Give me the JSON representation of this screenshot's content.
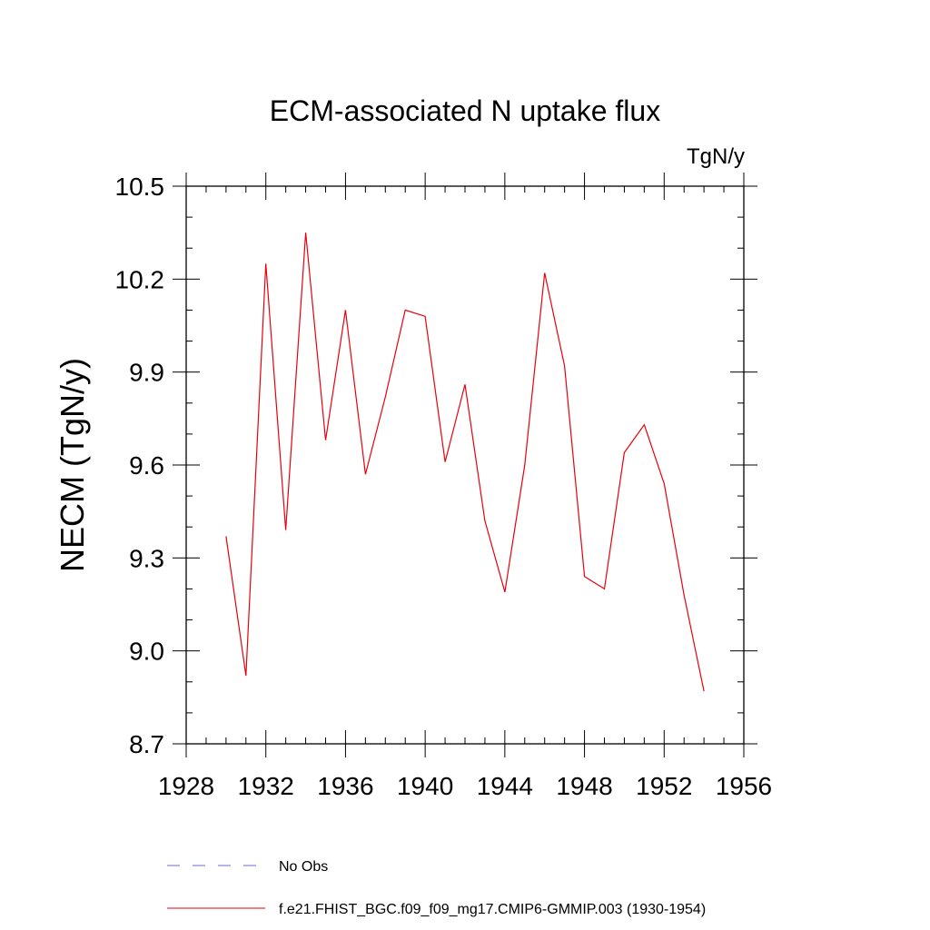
{
  "chart_data": {
    "type": "line",
    "title": "ECM-associated N uptake flux",
    "units": "TgN/y",
    "xlabel": "",
    "ylabel": "NECM  (TgN/y)",
    "xlim": [
      1928,
      1956
    ],
    "ylim": [
      8.7,
      10.5
    ],
    "x_ticks": [
      1928,
      1932,
      1936,
      1940,
      1944,
      1948,
      1952,
      1956
    ],
    "y_ticks": [
      "8.7",
      "9.0",
      "9.3",
      "9.6",
      "9.9",
      "10.2",
      "10.5"
    ],
    "grid": false,
    "legend_position": "bottom",
    "legend": [
      {
        "label": "No Obs",
        "color": "#6b6bd6",
        "style": "dashed"
      },
      {
        "label": "f.e21.FHIST_BGC.f09_f09_mg17.CMIP6-GMMIP.003 (1930-1954)",
        "color": "#e8000b",
        "style": "solid"
      }
    ],
    "series": [
      {
        "name": "f.e21.FHIST_BGC.f09_f09_mg17.CMIP6-GMMIP.003 (1930-1954)",
        "color": "#e8000b",
        "x": [
          1930,
          1931,
          1932,
          1933,
          1934,
          1935,
          1936,
          1937,
          1938,
          1939,
          1940,
          1941,
          1942,
          1943,
          1944,
          1945,
          1946,
          1947,
          1948,
          1949,
          1950,
          1951,
          1952,
          1953,
          1954
        ],
        "y": [
          9.37,
          8.92,
          10.25,
          9.39,
          10.35,
          9.68,
          10.1,
          9.57,
          9.82,
          10.1,
          10.08,
          9.61,
          9.86,
          9.42,
          9.19,
          9.6,
          10.22,
          9.92,
          9.24,
          9.2,
          9.64,
          9.73,
          9.54,
          9.18,
          8.87
        ]
      }
    ]
  }
}
